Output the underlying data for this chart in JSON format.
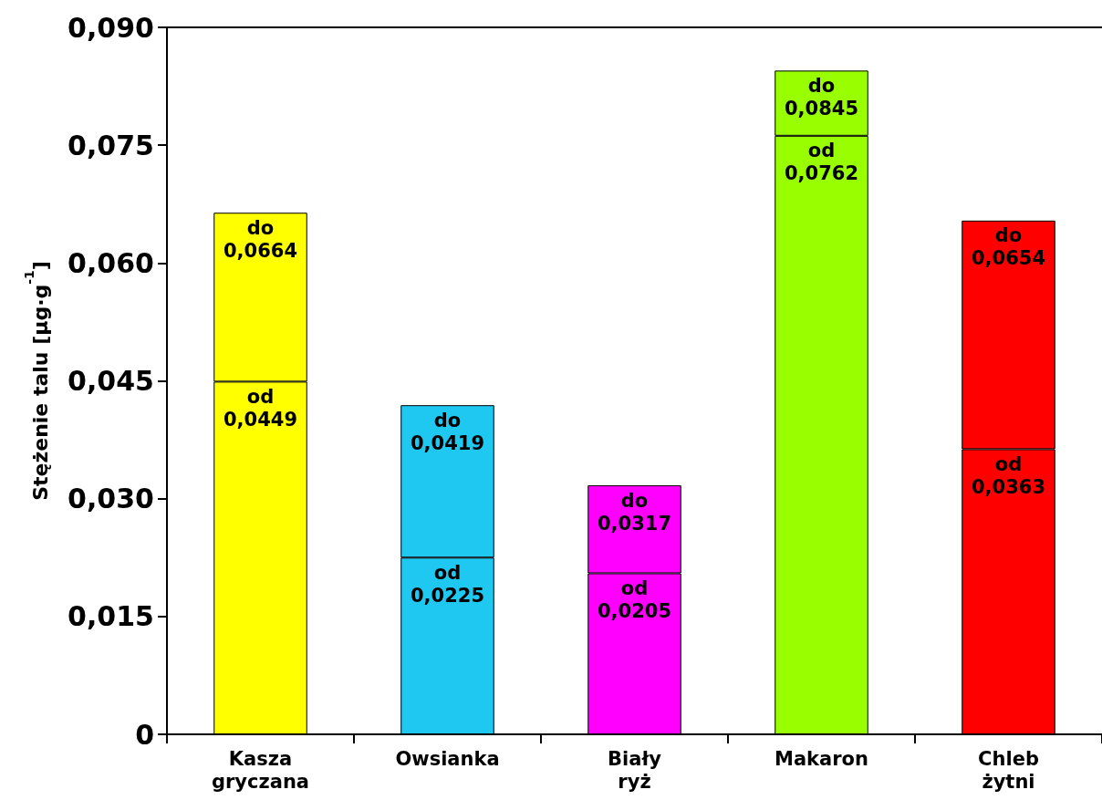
{
  "chart_data": {
    "type": "bar",
    "stacked": true,
    "ylabel": "Stężenie talu [µg·g$^{-1}$]",
    "categories": [
      "Kasza\ngryczana",
      "Owsianka",
      "Biały\nryż",
      "Makaron",
      "Chleb\nżytni"
    ],
    "series": [
      {
        "colors": [
          "#ffff00",
          "#1ec8f0",
          "#ff00ff",
          "#99ff00",
          "#ff0000"
        ],
        "values": [
          0.0449,
          0.0225,
          0.0205,
          0.0762,
          0.0363
        ],
        "value_labels": [
          "od\n0,0449",
          "od\n0,0225",
          "od\n0,0205",
          "od\n0,0762",
          "od\n0,0363"
        ]
      },
      {
        "colors": [
          "#ffff00",
          "#1ec8f0",
          "#ff00ff",
          "#99ff00",
          "#ff0000"
        ],
        "values": [
          0.0215,
          0.0194,
          0.0112,
          0.0083,
          0.0291
        ],
        "value_labels": [
          "do\n0,0664",
          "do\n0,0419",
          "do\n0,0317",
          "do\n0,0845",
          "do\n0,0654"
        ]
      }
    ],
    "ylim": [
      0,
      0.09
    ],
    "yticks": [
      0,
      {
        "value": 0.015,
        "label": "0,015"
      },
      {
        "value": 0.03,
        "label": "0,030"
      },
      {
        "value": 0.045,
        "label": "0,045"
      },
      {
        "value": 0.06,
        "label": "0,060"
      },
      {
        "value": 0.075,
        "label": "0,075"
      },
      {
        "value": 0.09,
        "label": "0,090"
      }
    ],
    "grid": false
  }
}
